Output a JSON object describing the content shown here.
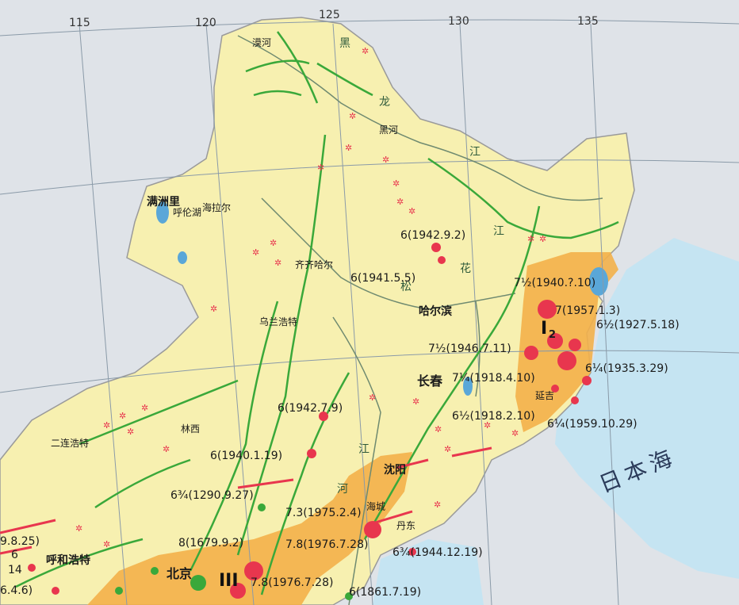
{
  "longitudes": [
    "115",
    "120",
    "125",
    "130",
    "135"
  ],
  "cities": {
    "mohe": "漠河",
    "heihe": "黑河",
    "manzhouli": "满洲里",
    "hailaer": "海拉尔",
    "qiqihaer": "齐齐哈尔",
    "haerbin": "哈尔滨",
    "wulanhaote": "乌兰浩特",
    "changchun": "长春",
    "yanji": "延吉",
    "erlianhaote": "二连浩特",
    "linxi": "林西",
    "shenyang": "沈阳",
    "haicheng": "海城",
    "dandong": "丹东",
    "huhehaote": "呼和浩特",
    "beijing": "北京"
  },
  "regions": {
    "hulunbuir": "呼伦湖"
  },
  "rivers": {
    "hei": "黑",
    "long": "龙",
    "jiang": "江",
    "songhua_1": "松",
    "songhua_2": "花",
    "songhua_3": "江",
    "liao_1": "江",
    "liao_2": "河"
  },
  "sea": "日本海",
  "zones": {
    "zone_east": "I",
    "zone_east_2": "2",
    "zone_north_china": "III"
  },
  "earthquakes": [
    {
      "id": "q1942_9_2",
      "label": "6(1942.9.2)"
    },
    {
      "id": "q1941_5_5",
      "label": "6(1941.5.5)"
    },
    {
      "id": "q1940_x_10",
      "label": "7½(1940.?.10)"
    },
    {
      "id": "q1957_1_3",
      "label": "7(1957.1.3)"
    },
    {
      "id": "q1927_5_18",
      "label": "6½(1927.5.18)"
    },
    {
      "id": "q1946_7_11",
      "label": "7½(1946.7.11)"
    },
    {
      "id": "q1935_3_29",
      "label": "6¼(1935.3.29)"
    },
    {
      "id": "q1918_4_10",
      "label": "7¼(1918.4.10)"
    },
    {
      "id": "q1918_2_10",
      "label": "6½(1918.2.10)"
    },
    {
      "id": "q1959_10_29",
      "label": "6¼(1959.10.29)"
    },
    {
      "id": "q1942_7_9",
      "label": "6(1942.7.9)"
    },
    {
      "id": "q1940_x_19",
      "label": "6(1940.1.19)"
    },
    {
      "id": "q1290_9_27",
      "label": "6¾(1290.9.27)"
    },
    {
      "id": "q1975_2_4",
      "label": "7.3(1975.2.4)"
    },
    {
      "id": "q1976_7_28_a",
      "label": "7.8(1976.7.28)"
    },
    {
      "id": "q1679_9_2",
      "label": "8(1679.9.2)"
    },
    {
      "id": "q1976_7_28_b",
      "label": "7.8(1976.7.28)"
    },
    {
      "id": "q1944_12_19",
      "label": "6¾(1944.12.19)"
    },
    {
      "id": "q1861_7_19",
      "label": "6(1861.7.19)"
    },
    {
      "id": "q_x_8_25",
      "label": "9.8.25)"
    },
    {
      "id": "q_x_4_6",
      "label": "6.4.6)"
    },
    {
      "id": "q14",
      "label": "14"
    },
    {
      "id": "q6",
      "label": "6"
    }
  ],
  "colors": {
    "sea": "#c5e4f2",
    "land_foreign": "#dfe3e8",
    "land_china": "#f7f0b0",
    "seismic_zone": "#f3b04a",
    "fault": "#3aa83a",
    "epicenter": "#e8364e",
    "border": "#9a9a9a"
  }
}
